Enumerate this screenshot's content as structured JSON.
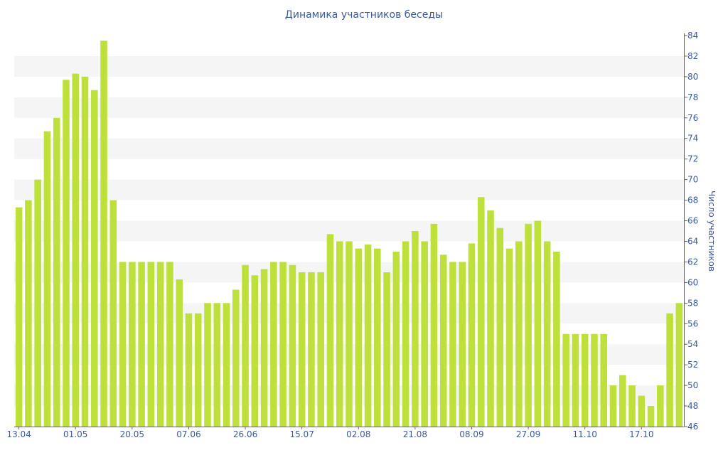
{
  "chart_data": {
    "type": "bar",
    "title": "Динамика участников беседы",
    "ylabel": "Число участников",
    "xlabel": "",
    "ylim": [
      46,
      84
    ],
    "ytick_step": 2,
    "y_axis_side": "right",
    "grid": "alternating horizontal bands",
    "legend": "none",
    "bar_color": "#bde03a",
    "band_color": "#f5f5f5",
    "text_color": "#3d5a9a",
    "x_tick_labels": [
      "13.04",
      "01.05",
      "20.05",
      "07.06",
      "26.06",
      "15.07",
      "02.08",
      "21.08",
      "08.09",
      "27.09",
      "11.10",
      "17.10"
    ],
    "x_tick_positions": [
      0,
      6,
      12,
      18,
      24,
      30,
      36,
      42,
      48,
      54,
      60,
      66
    ],
    "values": [
      67.3,
      68,
      70,
      74.7,
      76,
      79.7,
      80.3,
      80,
      78.7,
      83.5,
      68,
      62,
      62,
      62,
      62,
      62,
      62,
      60.3,
      57,
      57,
      58,
      58,
      58,
      59.3,
      61.7,
      60.7,
      61.3,
      62,
      62,
      61.7,
      61,
      61,
      61,
      64.7,
      64,
      64,
      63.3,
      63.7,
      63.3,
      61,
      63,
      64,
      65,
      64,
      65.7,
      62.7,
      62,
      62,
      63.8,
      68.3,
      67,
      65.3,
      63.3,
      64,
      65.7,
      66,
      64,
      63,
      55,
      55,
      55,
      55,
      55,
      50,
      51,
      50,
      49,
      48,
      50,
      57,
      58
    ]
  }
}
